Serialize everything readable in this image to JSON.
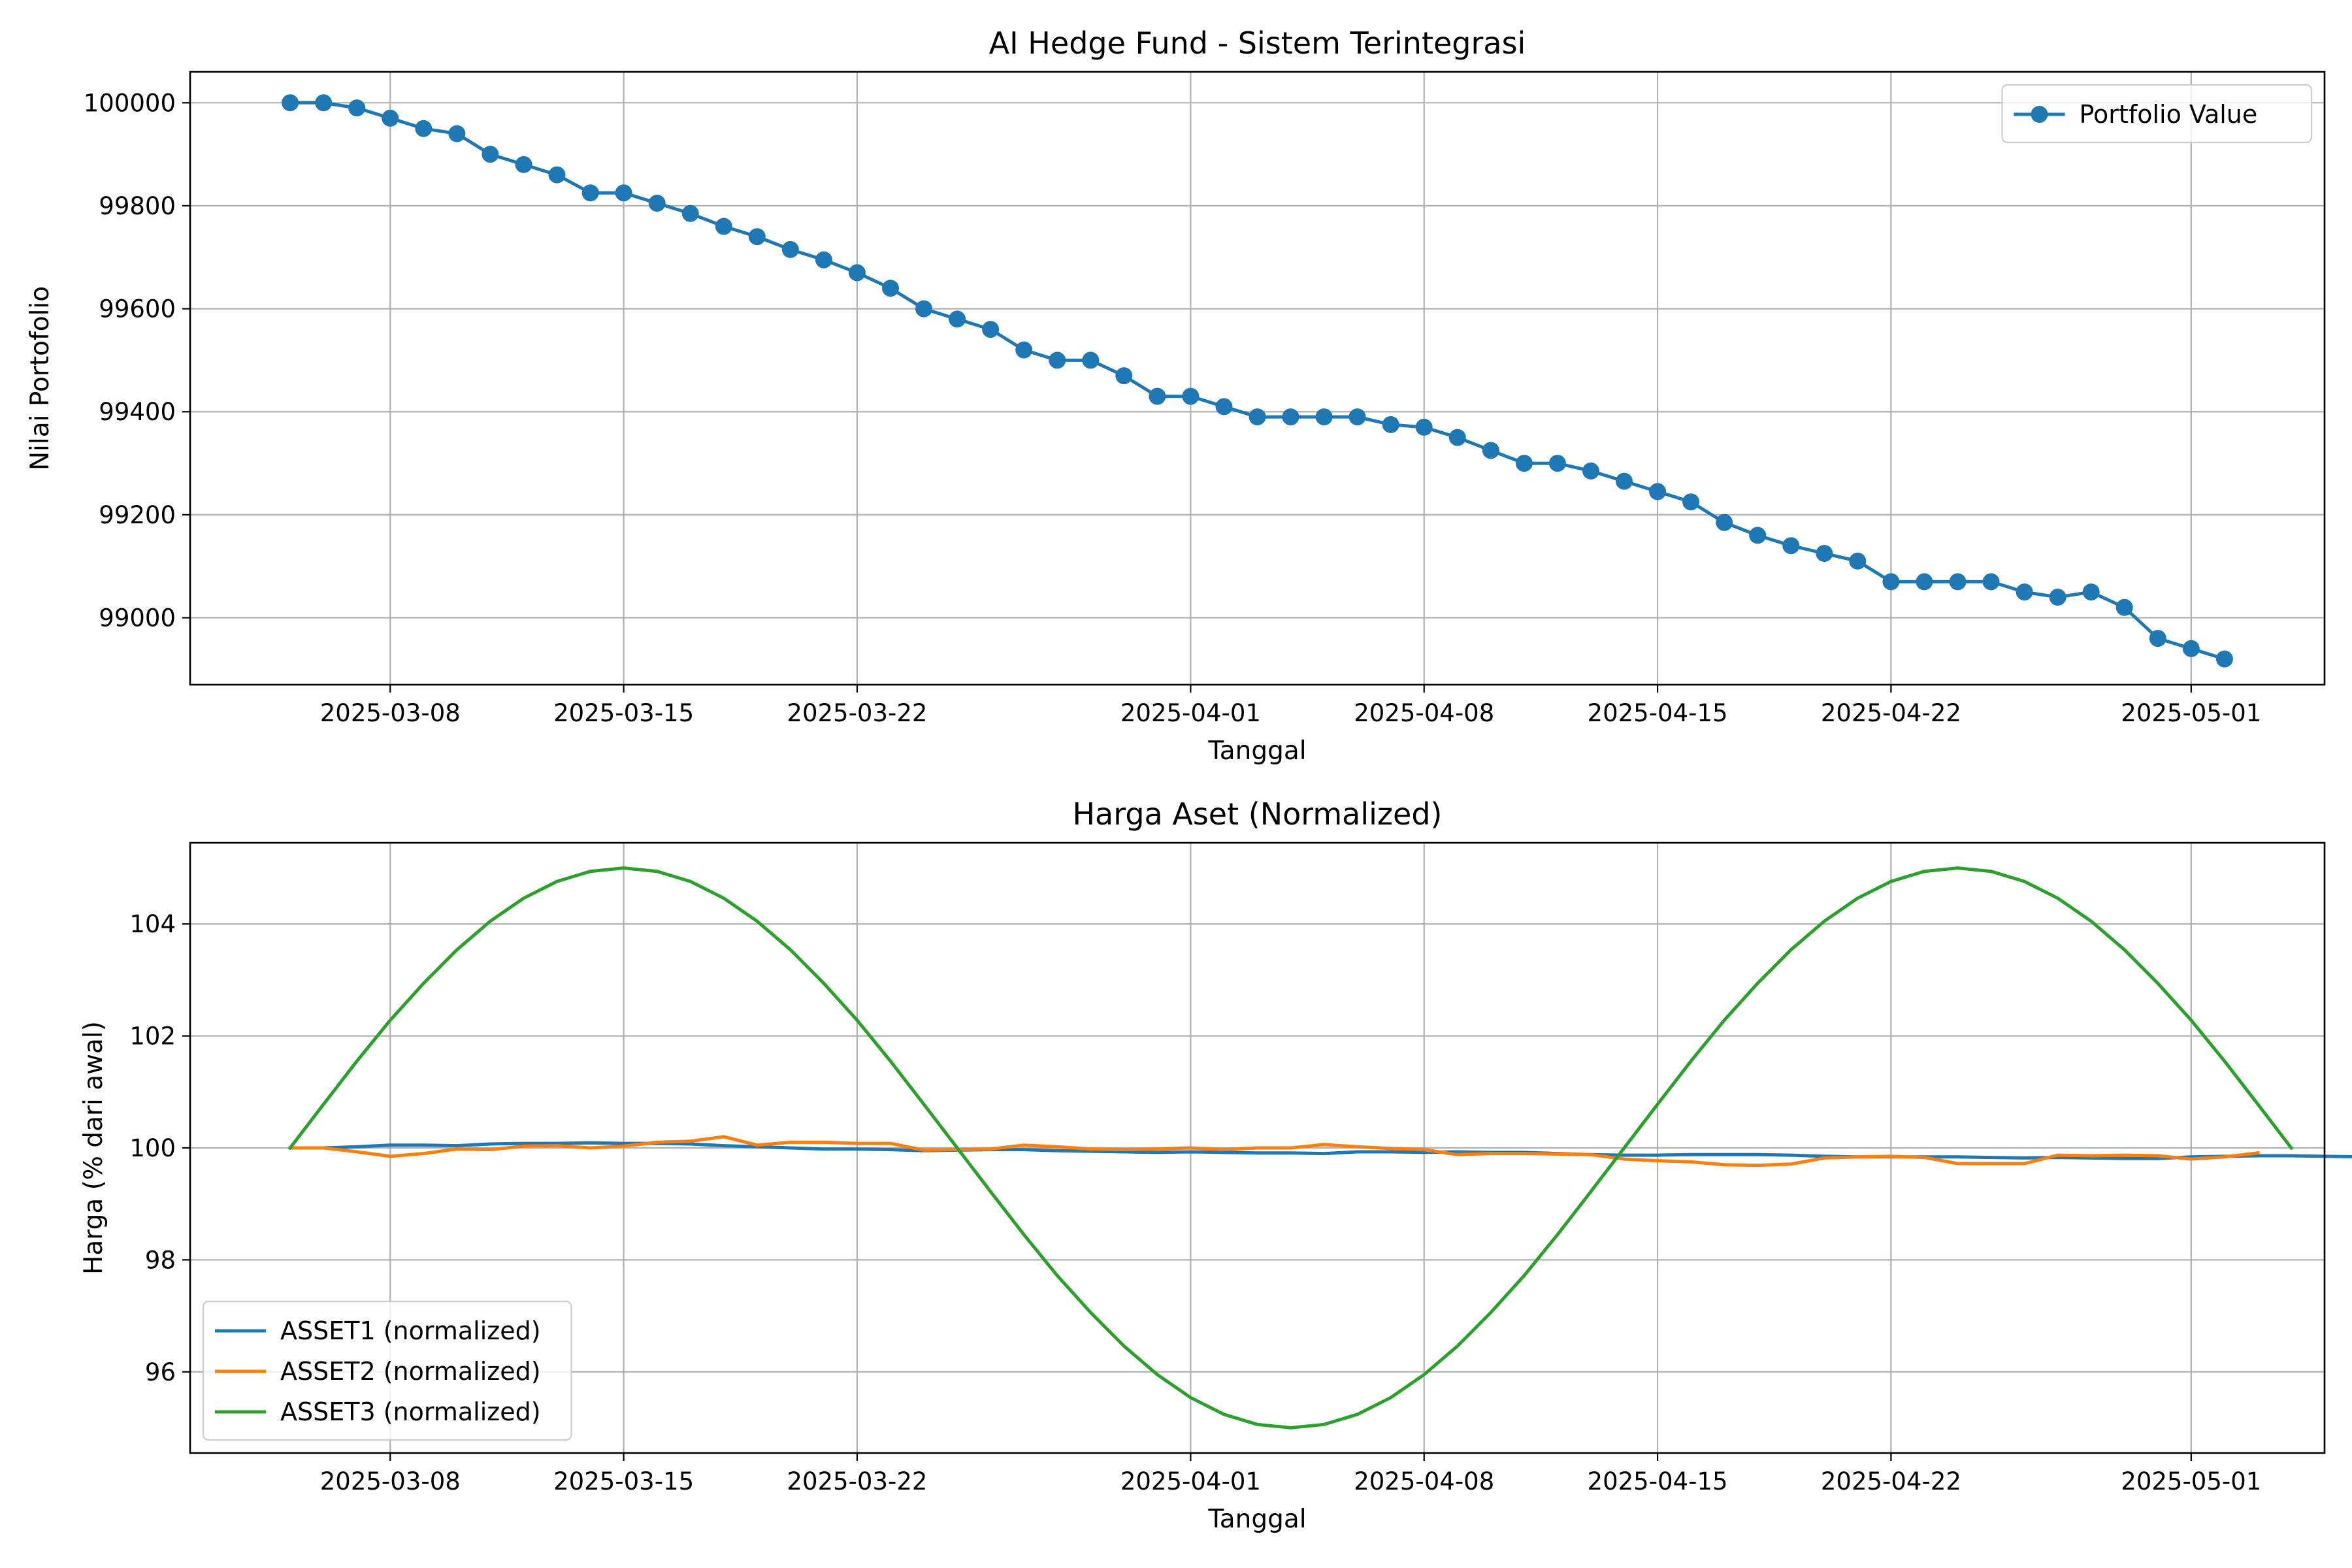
{
  "chart_data": [
    {
      "type": "line",
      "title": "AI Hedge Fund - Sistem Terintegrasi",
      "xlabel": "Tanggal",
      "ylabel": "Nilai Portofolio",
      "x_type": "date",
      "x_start": "2025-03-05",
      "x_end": "2025-05-02",
      "xlim": [
        "2025-03-02",
        "2025-05-05"
      ],
      "ylim": [
        98870,
        100060
      ],
      "xticks": [
        "2025-03-08",
        "2025-03-15",
        "2025-03-22",
        "2025-04-01",
        "2025-04-08",
        "2025-04-15",
        "2025-04-22",
        "2025-05-01"
      ],
      "yticks": [
        99000,
        99200,
        99400,
        99600,
        99800,
        100000
      ],
      "grid": true,
      "legend": "top-right",
      "series": [
        {
          "name": "Portfolio Value",
          "color": "#1f77b4",
          "marker": "circle",
          "values": [
            100000,
            100000,
            99990,
            99970,
            99950,
            99940,
            99900,
            99880,
            99860,
            99825,
            99825,
            99805,
            99785,
            99760,
            99740,
            99715,
            99695,
            99670,
            99640,
            99600,
            99580,
            99560,
            99520,
            99500,
            99500,
            99470,
            99430,
            99430,
            99410,
            99390,
            99390,
            99390,
            99390,
            99375,
            99370,
            99350,
            99325,
            99300,
            99300,
            99285,
            99265,
            99245,
            99225,
            99185,
            99160,
            99140,
            99125,
            99110,
            99070,
            99070,
            99070,
            99070,
            99050,
            99040,
            99050,
            99020,
            98960,
            98940,
            98920
          ]
        }
      ]
    },
    {
      "type": "line",
      "title": "Harga Aset (Normalized)",
      "xlabel": "Tanggal",
      "ylabel": "Harga (% dari awal)",
      "x_type": "date",
      "x_start": "2025-03-05",
      "x_end": "2025-05-02",
      "xlim": [
        "2025-03-02",
        "2025-05-05"
      ],
      "ylim": [
        94.55,
        105.45
      ],
      "xticks": [
        "2025-03-08",
        "2025-03-15",
        "2025-03-22",
        "2025-04-01",
        "2025-04-08",
        "2025-04-15",
        "2025-04-22",
        "2025-05-01"
      ],
      "yticks": [
        96,
        98,
        100,
        102,
        104
      ],
      "grid": true,
      "legend": "bottom-left",
      "series": [
        {
          "name": "ASSET1 (normalized)",
          "color": "#1f77b4",
          "values": [
            100.0,
            100.0,
            100.02,
            100.05,
            100.05,
            100.04,
            100.07,
            100.08,
            100.08,
            100.09,
            100.08,
            100.08,
            100.07,
            100.04,
            100.02,
            100.0,
            99.98,
            99.98,
            99.97,
            99.95,
            99.96,
            99.97,
            99.97,
            99.95,
            99.94,
            99.93,
            99.92,
            99.93,
            99.92,
            99.91,
            99.91,
            99.9,
            99.93,
            99.93,
            99.92,
            99.93,
            99.92,
            99.92,
            99.9,
            99.88,
            99.87,
            99.87,
            99.88,
            99.88,
            99.88,
            99.87,
            99.85,
            99.84,
            99.84,
            99.84,
            99.84,
            99.83,
            99.82,
            99.83,
            99.82,
            99.81,
            99.81,
            99.84,
            99.85,
            99.86,
            99.86,
            99.85,
            99.84,
            99.84,
            99.86,
            99.87
          ]
        },
        {
          "name": "ASSET2 (normalized)",
          "color": "#ff7f0e",
          "values": [
            100.0,
            100.0,
            99.93,
            99.85,
            99.9,
            99.98,
            99.97,
            100.03,
            100.04,
            100.0,
            100.03,
            100.1,
            100.12,
            100.2,
            100.05,
            100.1,
            100.1,
            100.08,
            100.08,
            99.96,
            99.97,
            99.98,
            100.05,
            100.02,
            99.98,
            99.97,
            99.98,
            100.0,
            99.97,
            100.0,
            100.0,
            100.06,
            100.02,
            99.99,
            99.97,
            99.88,
            99.9,
            99.9,
            99.89,
            99.88,
            99.8,
            99.77,
            99.75,
            99.7,
            99.69,
            99.71,
            99.82,
            99.84,
            99.85,
            99.83,
            99.72,
            99.72,
            99.72,
            99.87,
            99.86,
            99.87,
            99.86,
            99.8,
            99.84,
            99.91
          ]
        },
        {
          "name": "ASSET3 (normalized)",
          "color": "#2ca02c",
          "values": [
            100.0,
            100.78,
            101.55,
            102.28,
            102.94,
            103.54,
            104.05,
            104.46,
            104.76,
            104.94,
            105.0,
            104.94,
            104.76,
            104.46,
            104.05,
            103.54,
            102.94,
            102.28,
            101.55,
            100.78,
            100.0,
            99.22,
            98.45,
            97.72,
            97.06,
            96.46,
            95.95,
            95.54,
            95.24,
            95.06,
            95.0,
            95.06,
            95.24,
            95.54,
            95.95,
            96.46,
            97.06,
            97.72,
            98.45,
            99.22,
            100.0,
            100.78,
            101.55,
            102.28,
            102.94,
            103.54,
            104.05,
            104.46,
            104.76,
            104.94,
            105.0,
            104.94,
            104.76,
            104.46,
            104.05,
            103.54,
            102.94,
            102.28,
            101.55,
            100.78,
            100.0
          ]
        }
      ]
    }
  ]
}
